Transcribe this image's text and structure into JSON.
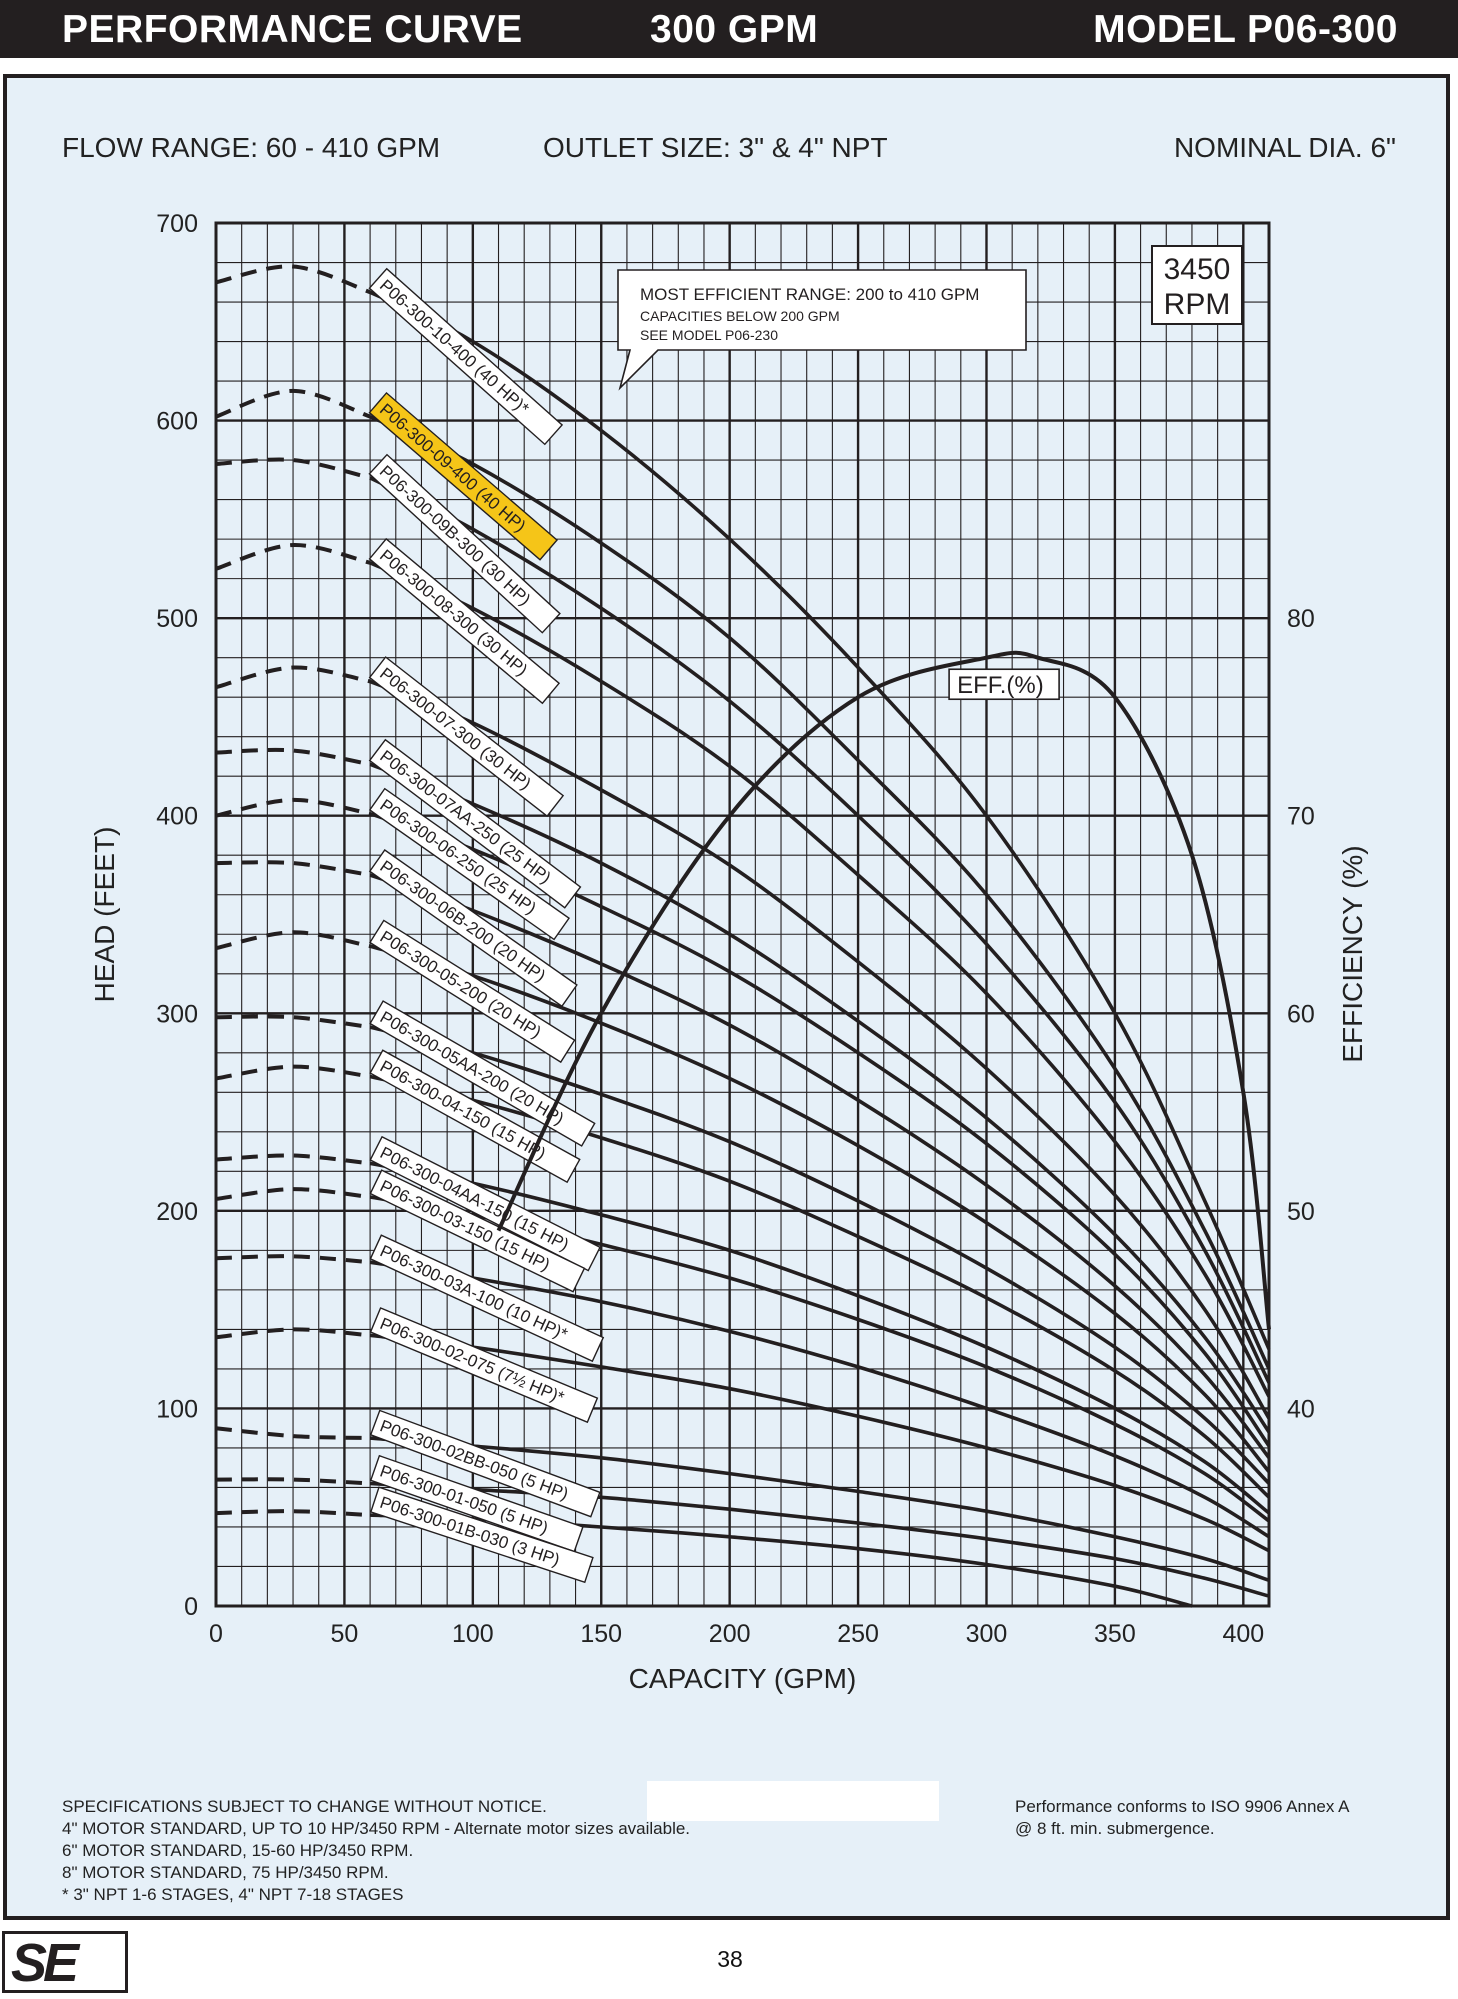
{
  "header": {
    "left": "PERFORMANCE CURVE",
    "center": "300 GPM",
    "right": "MODEL  P06-300"
  },
  "info": {
    "flow_range": "FLOW RANGE: 60 - 410 GPM",
    "outlet_size": "OUTLET SIZE: 3\" & 4\" NPT",
    "nominal_dia": "NOMINAL DIA. 6\""
  },
  "chart_data": {
    "type": "line",
    "xlabel": "CAPACITY (GPM)",
    "ylabel": "HEAD (FEET)",
    "y2label": "EFFICIENCY (%)",
    "xlim": [
      0,
      410
    ],
    "ylim": [
      0,
      700
    ],
    "y2lim": [
      30,
      100
    ],
    "x_ticks": [
      0,
      50,
      100,
      150,
      200,
      250,
      300,
      350,
      400
    ],
    "y_ticks": [
      0,
      100,
      200,
      300,
      400,
      500,
      600,
      700
    ],
    "y2_ticks": [
      40,
      50,
      60,
      70,
      80
    ],
    "grid": true,
    "speed_label": [
      "3450",
      "RPM"
    ],
    "annotation": [
      "MOST EFFICIENT RANGE: 200 to 410 GPM",
      "CAPACITIES BELOW 200 GPM",
      "SEE  MODEL P06-230"
    ],
    "highlighted": "P06-300-09-400 (40 HP)",
    "efficiency_curve": {
      "name": "EFF.(%)",
      "points": [
        [
          110,
          49
        ],
        [
          150,
          60
        ],
        [
          200,
          70
        ],
        [
          250,
          76
        ],
        [
          300,
          78
        ],
        [
          320,
          78
        ],
        [
          350,
          76
        ],
        [
          380,
          68
        ],
        [
          400,
          56
        ],
        [
          410,
          44
        ]
      ]
    },
    "series": [
      {
        "name": "P06-300-10-400 (40 HP)*",
        "shutoff": 670,
        "points": [
          [
            0,
            670
          ],
          [
            30,
            678
          ],
          [
            60,
            665
          ],
          [
            100,
            640
          ],
          [
            150,
            595
          ],
          [
            200,
            540
          ],
          [
            250,
            475
          ],
          [
            300,
            400
          ],
          [
            350,
            300
          ],
          [
            385,
            205
          ],
          [
            410,
            130
          ]
        ]
      },
      {
        "name": "P06-300-09-400 (40 HP)",
        "shutoff": 602,
        "points": [
          [
            0,
            602
          ],
          [
            30,
            615
          ],
          [
            60,
            602
          ],
          [
            100,
            578
          ],
          [
            150,
            538
          ],
          [
            200,
            490
          ],
          [
            250,
            428
          ],
          [
            300,
            360
          ],
          [
            350,
            272
          ],
          [
            385,
            190
          ],
          [
            410,
            120
          ]
        ]
      },
      {
        "name": "P06-300-09B-300 (30 HP)",
        "shutoff": 578,
        "points": [
          [
            0,
            578
          ],
          [
            30,
            580
          ],
          [
            60,
            571
          ],
          [
            100,
            545
          ],
          [
            150,
            505
          ],
          [
            200,
            458
          ],
          [
            250,
            400
          ],
          [
            300,
            335
          ],
          [
            350,
            255
          ],
          [
            385,
            180
          ],
          [
            410,
            113
          ]
        ]
      },
      {
        "name": "P06-300-08-300 (30 HP)",
        "shutoff": 525,
        "points": [
          [
            0,
            525
          ],
          [
            30,
            537
          ],
          [
            60,
            528
          ],
          [
            100,
            505
          ],
          [
            150,
            468
          ],
          [
            200,
            425
          ],
          [
            250,
            370
          ],
          [
            300,
            310
          ],
          [
            350,
            235
          ],
          [
            385,
            168
          ],
          [
            410,
            106
          ]
        ]
      },
      {
        "name": "P06-300-07-300 (30 HP)",
        "shutoff": 465,
        "points": [
          [
            0,
            465
          ],
          [
            30,
            475
          ],
          [
            60,
            468
          ],
          [
            100,
            447
          ],
          [
            150,
            413
          ],
          [
            200,
            375
          ],
          [
            250,
            326
          ],
          [
            300,
            272
          ],
          [
            350,
            208
          ],
          [
            385,
            150
          ],
          [
            410,
            95
          ]
        ]
      },
      {
        "name": "P06-300-07AA-250 (25 HP)",
        "shutoff": 432,
        "points": [
          [
            0,
            432
          ],
          [
            30,
            433
          ],
          [
            60,
            426
          ],
          [
            100,
            406
          ],
          [
            150,
            376
          ],
          [
            200,
            340
          ],
          [
            250,
            296
          ],
          [
            300,
            247
          ],
          [
            350,
            188
          ],
          [
            385,
            136
          ],
          [
            410,
            88
          ]
        ]
      },
      {
        "name": "P06-300-06-250 (25 HP)",
        "shutoff": 400,
        "points": [
          [
            0,
            400
          ],
          [
            30,
            408
          ],
          [
            60,
            401
          ],
          [
            100,
            383
          ],
          [
            150,
            354
          ],
          [
            200,
            321
          ],
          [
            250,
            280
          ],
          [
            300,
            234
          ],
          [
            350,
            178
          ],
          [
            385,
            128
          ],
          [
            410,
            81
          ]
        ]
      },
      {
        "name": "P06-300-06B-200 (20 HP)",
        "shutoff": 376,
        "points": [
          [
            0,
            376
          ],
          [
            30,
            376
          ],
          [
            60,
            370
          ],
          [
            100,
            352
          ],
          [
            150,
            325
          ],
          [
            200,
            294
          ],
          [
            250,
            256
          ],
          [
            300,
            213
          ],
          [
            350,
            162
          ],
          [
            385,
            117
          ],
          [
            410,
            75
          ]
        ]
      },
      {
        "name": "P06-300-05-200 (20 HP)",
        "shutoff": 333,
        "points": [
          [
            0,
            333
          ],
          [
            30,
            341
          ],
          [
            60,
            334
          ],
          [
            100,
            319
          ],
          [
            150,
            295
          ],
          [
            200,
            267
          ],
          [
            250,
            233
          ],
          [
            300,
            194
          ],
          [
            350,
            148
          ],
          [
            385,
            107
          ],
          [
            410,
            68
          ]
        ]
      },
      {
        "name": "P06-300-05AA-200 (20 HP)",
        "shutoff": 298,
        "points": [
          [
            0,
            298
          ],
          [
            30,
            298
          ],
          [
            60,
            293
          ],
          [
            100,
            280
          ],
          [
            150,
            259
          ],
          [
            200,
            235
          ],
          [
            250,
            205
          ],
          [
            300,
            171
          ],
          [
            350,
            131
          ],
          [
            385,
            95
          ],
          [
            410,
            62
          ]
        ]
      },
      {
        "name": "P06-300-04-150 (15 HP)",
        "shutoff": 267,
        "points": [
          [
            0,
            267
          ],
          [
            30,
            273
          ],
          [
            60,
            268
          ],
          [
            100,
            256
          ],
          [
            150,
            237
          ],
          [
            200,
            215
          ],
          [
            250,
            187
          ],
          [
            300,
            156
          ],
          [
            350,
            119
          ],
          [
            385,
            86
          ],
          [
            410,
            55
          ]
        ]
      },
      {
        "name": "P06-300-04AA-150 (15 HP)",
        "shutoff": 226,
        "points": [
          [
            0,
            226
          ],
          [
            30,
            228
          ],
          [
            60,
            224
          ],
          [
            100,
            214
          ],
          [
            150,
            198
          ],
          [
            200,
            180
          ],
          [
            250,
            157
          ],
          [
            300,
            131
          ],
          [
            350,
            100
          ],
          [
            385,
            73
          ],
          [
            410,
            47
          ]
        ]
      },
      {
        "name": "P06-300-03-150 (15 HP)",
        "shutoff": 206,
        "points": [
          [
            0,
            206
          ],
          [
            30,
            211
          ],
          [
            60,
            207
          ],
          [
            100,
            198
          ],
          [
            150,
            183
          ],
          [
            200,
            166
          ],
          [
            250,
            145
          ],
          [
            300,
            121
          ],
          [
            350,
            92
          ],
          [
            385,
            67
          ],
          [
            410,
            43
          ]
        ]
      },
      {
        "name": "P06-300-03A-100 (10 HP)*",
        "shutoff": 176,
        "points": [
          [
            0,
            176
          ],
          [
            30,
            177
          ],
          [
            60,
            174
          ],
          [
            100,
            166
          ],
          [
            150,
            154
          ],
          [
            200,
            139
          ],
          [
            250,
            121
          ],
          [
            300,
            100
          ],
          [
            350,
            76
          ],
          [
            385,
            55
          ],
          [
            410,
            35
          ]
        ]
      },
      {
        "name": "P06-300-02-075 (7½ HP)*",
        "shutoff": 136,
        "points": [
          [
            0,
            136
          ],
          [
            30,
            140
          ],
          [
            60,
            137
          ],
          [
            100,
            131
          ],
          [
            150,
            121
          ],
          [
            200,
            110
          ],
          [
            250,
            96
          ],
          [
            300,
            80
          ],
          [
            350,
            61
          ],
          [
            385,
            44
          ],
          [
            410,
            28
          ]
        ]
      },
      {
        "name": "P06-300-02BB-050 (5 HP)",
        "shutoff": 90,
        "points": [
          [
            0,
            90
          ],
          [
            30,
            86
          ],
          [
            60,
            85
          ],
          [
            100,
            81
          ],
          [
            150,
            75
          ],
          [
            200,
            67
          ],
          [
            250,
            58
          ],
          [
            300,
            48
          ],
          [
            350,
            35
          ],
          [
            385,
            24
          ],
          [
            410,
            13
          ]
        ]
      },
      {
        "name": "P06-300-01-050 (5 HP)",
        "shutoff": 64,
        "points": [
          [
            0,
            64
          ],
          [
            30,
            64
          ],
          [
            60,
            62
          ],
          [
            100,
            59
          ],
          [
            150,
            55
          ],
          [
            200,
            49
          ],
          [
            250,
            42
          ],
          [
            300,
            34
          ],
          [
            350,
            24
          ],
          [
            385,
            14
          ],
          [
            410,
            5
          ]
        ]
      },
      {
        "name": "P06-300-01B-030 (3 HP)",
        "shutoff": 47,
        "points": [
          [
            0,
            47
          ],
          [
            30,
            48
          ],
          [
            60,
            46
          ],
          [
            100,
            44
          ],
          [
            150,
            40
          ],
          [
            200,
            35
          ],
          [
            250,
            29
          ],
          [
            300,
            21
          ],
          [
            350,
            10
          ],
          [
            380,
            0
          ]
        ]
      }
    ]
  },
  "notes": {
    "left": [
      "SPECIFICATIONS SUBJECT TO CHANGE WITHOUT NOTICE.",
      "4\" MOTOR STANDARD, UP TO 10 HP/3450 RPM - Alternate motor sizes available.",
      "6\" MOTOR STANDARD, 15-60 HP/3450 RPM.",
      "8\" MOTOR STANDARD, 75 HP/3450 RPM.",
      "* 3\" NPT 1-6 STAGES, 4\" NPT 7-18 STAGES"
    ],
    "right": [
      "Performance conforms to ISO 9906 Annex A",
      "@ 8 ft. min. submergence."
    ]
  },
  "footer": {
    "logo": "SE",
    "page_number": "38"
  }
}
